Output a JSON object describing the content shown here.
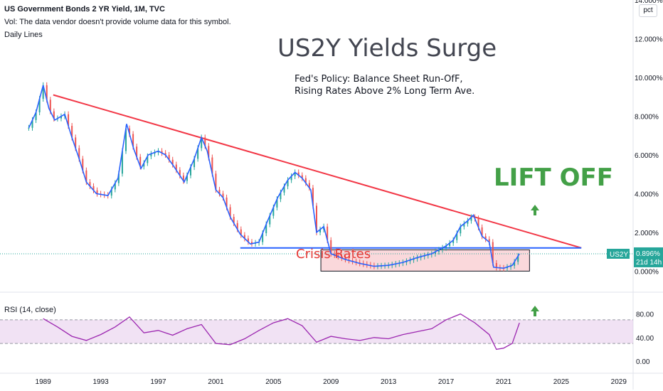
{
  "header": {
    "symbol": "US Government Bonds 2 YR Yield, 1M, TVC",
    "volume_note": "Vol: The data vendor doesn't provide volume data for this symbol.",
    "daily_lines": "Daily Lines"
  },
  "annotations": {
    "title": "US2Y Yields Surge",
    "policy_line1": "Fed's Policy:  Balance Sheet Run-OfF,",
    "policy_line2": "Rising Rates Above 2% Long Term Ave.",
    "lift_off": "LIFT OFF",
    "crisis_rates": "Crisis Rates"
  },
  "price_scale": {
    "ticks": [
      "14.000%",
      "12.000%",
      "10.000%",
      "8.000%",
      "6.000%",
      "4.000%",
      "2.000%",
      "0.000%"
    ],
    "pct_button": "pct"
  },
  "last_price": {
    "symbol": "US2Y",
    "value": "0.896%",
    "countdown": "21d 14h",
    "color": "#26a69a"
  },
  "rsi": {
    "label": "RSI (14, close)",
    "ticks": [
      "80.00",
      "40.00",
      "0.00"
    ],
    "band": [
      30,
      70
    ],
    "color": "#9c27b0"
  },
  "time_axis": [
    "1989",
    "1993",
    "1997",
    "2001",
    "2005",
    "2009",
    "2013",
    "2017",
    "2021",
    "2025",
    "2029"
  ],
  "colors": {
    "candle_up": "#26a69a",
    "candle_down": "#ef5350",
    "moving_average": "#2962ff",
    "resistance_line": "#f23645",
    "support_line": "#2962ff",
    "lift_off_text": "#43a047",
    "crisis_text": "#e53935",
    "crisis_zone": "#f8c8cc"
  },
  "chart_data": {
    "type": "line",
    "title": "US2Y Yields Surge",
    "series": [
      {
        "name": "US Government Bonds 2 YR Yield",
        "x": [
          1988.0,
          1988.5,
          1989.0,
          1989.4,
          1989.8,
          1990.5,
          1991.0,
          1991.5,
          1992.0,
          1992.7,
          1993.5,
          1994.2,
          1994.8,
          1995.3,
          1995.8,
          1996.3,
          1997.0,
          1997.5,
          1998.0,
          1998.8,
          1999.5,
          2000.0,
          2000.4,
          2001.0,
          2001.5,
          2002.0,
          2002.7,
          2003.4,
          2004.0,
          2004.6,
          2005.3,
          2006.0,
          2006.5,
          2007.0,
          2007.6,
          2008.0,
          2008.5,
          2009.0,
          2010.0,
          2011.0,
          2012.0,
          2013.0,
          2014.0,
          2015.0,
          2016.0,
          2017.0,
          2017.5,
          2018.0,
          2018.5,
          2018.9,
          2019.5,
          2020.0,
          2020.3,
          2021.0,
          2021.6,
          2022.1
        ],
        "values": [
          7.4,
          8.2,
          9.6,
          8.4,
          7.8,
          8.1,
          6.9,
          5.8,
          4.6,
          4.0,
          3.9,
          4.8,
          7.6,
          6.3,
          5.3,
          6.0,
          6.2,
          6.0,
          5.5,
          4.6,
          5.8,
          6.9,
          6.2,
          4.2,
          3.8,
          2.8,
          1.9,
          1.4,
          1.5,
          2.6,
          3.8,
          4.7,
          5.1,
          4.8,
          4.2,
          2.0,
          2.3,
          0.9,
          0.6,
          0.4,
          0.25,
          0.3,
          0.45,
          0.7,
          0.9,
          1.3,
          1.6,
          2.3,
          2.6,
          2.9,
          1.8,
          1.5,
          0.2,
          0.15,
          0.3,
          0.896
        ]
      }
    ],
    "rsi_values": {
      "x": [
        1989.0,
        1990.0,
        1991.0,
        1992.0,
        1993.0,
        1994.0,
        1995.0,
        1996.0,
        1997.0,
        1998.0,
        1999.0,
        2000.0,
        2001.0,
        2002.0,
        2003.0,
        2004.0,
        2005.0,
        2006.0,
        2007.0,
        2008.0,
        2009.0,
        2010.0,
        2011.0,
        2012.0,
        2013.0,
        2014.0,
        2015.0,
        2016.0,
        2017.0,
        2018.0,
        2019.0,
        2020.0,
        2020.5,
        2021.0,
        2021.6,
        2022.1
      ],
      "values": [
        72,
        58,
        42,
        35,
        45,
        58,
        75,
        48,
        52,
        44,
        55,
        62,
        30,
        28,
        38,
        52,
        65,
        72,
        60,
        32,
        42,
        38,
        35,
        40,
        38,
        45,
        50,
        55,
        70,
        80,
        65,
        45,
        20,
        22,
        30,
        65
      ]
    },
    "xlim": [
      1986.0,
      2030.0
    ],
    "ylim": [
      -0.5,
      14.0
    ],
    "xlabel": "",
    "ylabel": "",
    "grid": false,
    "lines": {
      "resistance": {
        "from": [
          1989.7,
          9.1
        ],
        "to": [
          2026.4,
          1.2
        ]
      },
      "support": {
        "from": [
          2002.7,
          1.2
        ],
        "to": [
          2026.4,
          1.2
        ]
      }
    },
    "crisis_zone": {
      "x": [
        2008.3,
        2022.8
      ],
      "y": [
        0.0,
        1.1
      ]
    }
  }
}
